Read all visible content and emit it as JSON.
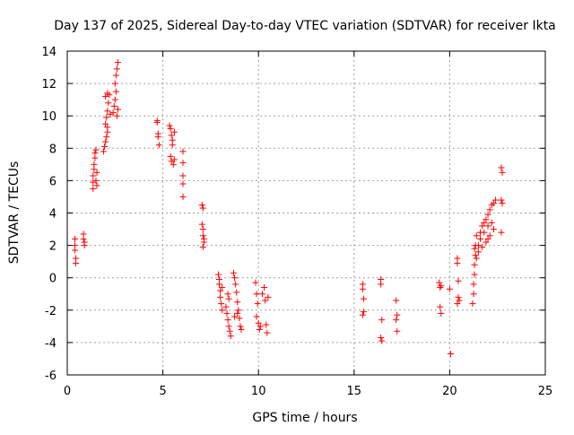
{
  "chart_data": {
    "type": "scatter",
    "title": "Day 137 of 2025, Sidereal Day-to-day VTEC variation (SDTVAR) for receiver Ikta",
    "xlabel": "GPS time / hours",
    "ylabel": "SDTVAR / TECUs",
    "xlim": [
      0,
      25
    ],
    "ylim": [
      -6,
      14
    ],
    "xticks": [
      0,
      5,
      10,
      15,
      20,
      25
    ],
    "yticks": [
      -6,
      -4,
      -2,
      0,
      2,
      4,
      6,
      8,
      10,
      12,
      14
    ],
    "grid": true,
    "marker": "+",
    "color": "#ff0000",
    "series": [
      {
        "name": "SDTVAR",
        "points": [
          [
            0.4,
            2.4
          ],
          [
            0.4,
            2.0
          ],
          [
            0.4,
            1.7
          ],
          [
            0.45,
            1.2
          ],
          [
            0.45,
            0.9
          ],
          [
            0.85,
            2.7
          ],
          [
            0.85,
            2.4
          ],
          [
            0.9,
            2.2
          ],
          [
            0.9,
            2.0
          ],
          [
            1.35,
            5.5
          ],
          [
            1.35,
            5.9
          ],
          [
            1.35,
            6.3
          ],
          [
            1.4,
            6.7
          ],
          [
            1.4,
            7.0
          ],
          [
            1.45,
            7.4
          ],
          [
            1.45,
            7.7
          ],
          [
            1.5,
            7.9
          ],
          [
            1.5,
            6.0
          ],
          [
            1.55,
            6.5
          ],
          [
            1.55,
            5.7
          ],
          [
            1.9,
            7.8
          ],
          [
            1.95,
            8.1
          ],
          [
            2.0,
            8.4
          ],
          [
            2.05,
            8.7
          ],
          [
            2.1,
            9.0
          ],
          [
            2.1,
            9.3
          ],
          [
            2.0,
            9.5
          ],
          [
            2.05,
            9.9
          ],
          [
            2.1,
            10.3
          ],
          [
            2.15,
            10.8
          ],
          [
            2.0,
            11.2
          ],
          [
            2.1,
            11.4
          ],
          [
            2.2,
            11.3
          ],
          [
            2.25,
            10.1
          ],
          [
            2.4,
            10.2
          ],
          [
            2.45,
            10.6
          ],
          [
            2.5,
            11.0
          ],
          [
            2.55,
            11.5
          ],
          [
            2.5,
            12.0
          ],
          [
            2.55,
            12.5
          ],
          [
            2.6,
            12.9
          ],
          [
            2.65,
            13.3
          ],
          [
            2.6,
            10.0
          ],
          [
            2.65,
            10.4
          ],
          [
            4.7,
            9.7
          ],
          [
            4.7,
            9.6
          ],
          [
            4.75,
            8.9
          ],
          [
            4.75,
            8.7
          ],
          [
            4.8,
            8.2
          ],
          [
            5.35,
            9.4
          ],
          [
            5.4,
            9.2
          ],
          [
            5.45,
            8.8
          ],
          [
            5.5,
            8.5
          ],
          [
            5.5,
            8.2
          ],
          [
            5.4,
            7.5
          ],
          [
            5.45,
            7.2
          ],
          [
            5.55,
            7.0
          ],
          [
            5.6,
            9.0
          ],
          [
            5.6,
            7.3
          ],
          [
            6.05,
            7.8
          ],
          [
            6.05,
            7.1
          ],
          [
            6.05,
            6.3
          ],
          [
            6.05,
            5.8
          ],
          [
            6.05,
            5.0
          ],
          [
            7.05,
            4.5
          ],
          [
            7.1,
            4.3
          ],
          [
            7.05,
            3.3
          ],
          [
            7.1,
            3.0
          ],
          [
            7.1,
            2.6
          ],
          [
            7.15,
            2.2
          ],
          [
            7.1,
            1.9
          ],
          [
            7.15,
            2.4
          ],
          [
            7.9,
            0.2
          ],
          [
            7.95,
            -0.4
          ],
          [
            8.0,
            -0.8
          ],
          [
            8.0,
            -1.2
          ],
          [
            8.05,
            -1.6
          ],
          [
            8.1,
            -2.0
          ],
          [
            7.95,
            -0.1
          ],
          [
            8.1,
            -0.6
          ],
          [
            8.3,
            -1.8
          ],
          [
            8.35,
            -2.2
          ],
          [
            8.4,
            -2.6
          ],
          [
            8.45,
            -3.0
          ],
          [
            8.5,
            -3.3
          ],
          [
            8.55,
            -3.6
          ],
          [
            8.4,
            -1.0
          ],
          [
            8.45,
            -1.3
          ],
          [
            8.7,
            0.3
          ],
          [
            8.75,
            0.0
          ],
          [
            8.8,
            -0.4
          ],
          [
            8.85,
            -0.9
          ],
          [
            8.9,
            -1.5
          ],
          [
            8.95,
            -2.0
          ],
          [
            9.0,
            -2.5
          ],
          [
            9.05,
            -3.0
          ],
          [
            9.1,
            -3.2
          ],
          [
            8.9,
            -2.2
          ],
          [
            8.75,
            -2.4
          ],
          [
            9.85,
            -0.3
          ],
          [
            9.9,
            -1.0
          ],
          [
            9.95,
            -1.6
          ],
          [
            9.9,
            -2.4
          ],
          [
            10.0,
            -2.8
          ],
          [
            10.05,
            -3.2
          ],
          [
            10.1,
            -3.0
          ],
          [
            10.2,
            -1.0
          ],
          [
            10.3,
            -0.6
          ],
          [
            10.35,
            -1.4
          ],
          [
            10.4,
            -2.9
          ],
          [
            10.45,
            -3.4
          ],
          [
            10.5,
            -1.2
          ],
          [
            15.45,
            -0.4
          ],
          [
            15.45,
            -0.7
          ],
          [
            15.5,
            -1.3
          ],
          [
            15.5,
            -2.1
          ],
          [
            15.45,
            -2.3
          ],
          [
            16.4,
            -0.1
          ],
          [
            16.4,
            -0.4
          ],
          [
            16.45,
            -2.6
          ],
          [
            16.4,
            -3.7
          ],
          [
            16.45,
            -3.9
          ],
          [
            17.2,
            -1.4
          ],
          [
            17.25,
            -2.3
          ],
          [
            17.2,
            -2.6
          ],
          [
            17.25,
            -3.3
          ],
          [
            19.45,
            -0.3
          ],
          [
            19.5,
            -0.6
          ],
          [
            19.5,
            -1.8
          ],
          [
            19.55,
            -2.2
          ],
          [
            19.55,
            -0.5
          ],
          [
            20.05,
            -4.7
          ],
          [
            20.0,
            -0.7
          ],
          [
            20.4,
            1.2
          ],
          [
            20.4,
            0.9
          ],
          [
            20.45,
            -0.2
          ],
          [
            20.45,
            -1.2
          ],
          [
            20.4,
            -1.6
          ],
          [
            20.5,
            -1.4
          ],
          [
            21.2,
            -1.6
          ],
          [
            21.25,
            -1.0
          ],
          [
            21.25,
            -0.4
          ],
          [
            21.3,
            0.2
          ],
          [
            21.3,
            0.8
          ],
          [
            21.35,
            1.4
          ],
          [
            21.35,
            2.0
          ],
          [
            21.4,
            2.6
          ],
          [
            21.3,
            1.8
          ],
          [
            21.4,
            1.2
          ],
          [
            21.5,
            2.0
          ],
          [
            21.6,
            2.8
          ],
          [
            21.7,
            3.2
          ],
          [
            21.8,
            3.4
          ],
          [
            21.9,
            3.6
          ],
          [
            22.0,
            3.9
          ],
          [
            22.1,
            4.2
          ],
          [
            22.2,
            4.5
          ],
          [
            22.3,
            4.6
          ],
          [
            22.4,
            4.8
          ],
          [
            21.6,
            2.4
          ],
          [
            21.8,
            2.8
          ],
          [
            22.0,
            3.2
          ],
          [
            22.2,
            3.4
          ],
          [
            22.3,
            3.0
          ],
          [
            21.5,
            1.6
          ],
          [
            21.7,
            1.9
          ],
          [
            21.9,
            2.2
          ],
          [
            22.1,
            2.6
          ],
          [
            22.0,
            2.4
          ],
          [
            22.7,
            6.8
          ],
          [
            22.75,
            6.5
          ],
          [
            22.7,
            4.8
          ],
          [
            22.75,
            4.6
          ],
          [
            22.7,
            2.8
          ]
        ]
      }
    ]
  }
}
